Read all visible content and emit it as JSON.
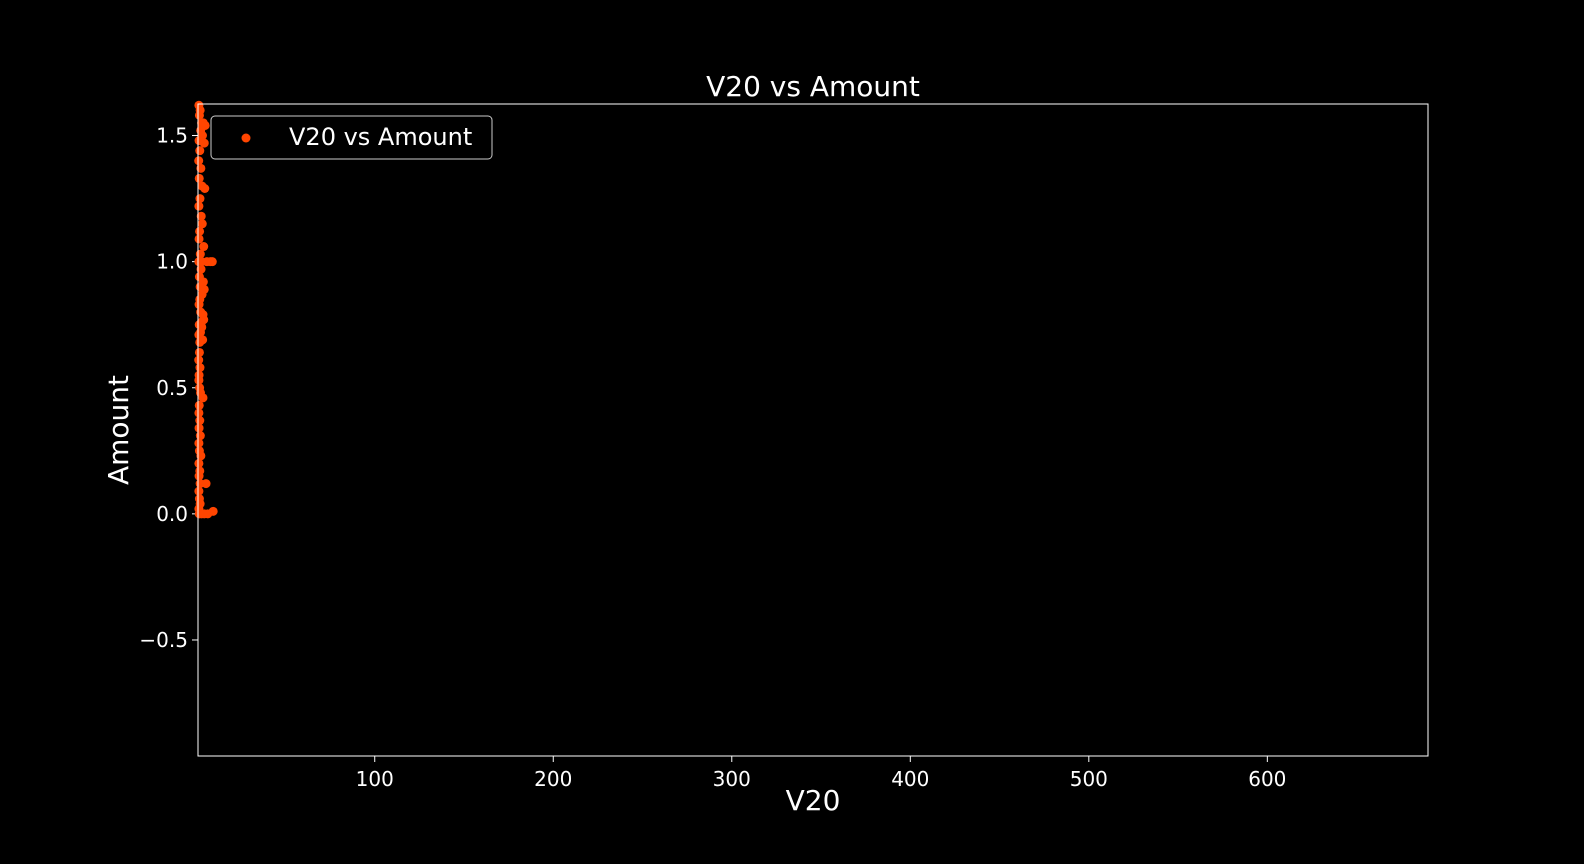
{
  "chart_data": {
    "type": "scatter",
    "title": "V20 vs Amount",
    "xlabel": "V20",
    "ylabel": "Amount",
    "xlim": [
      1,
      690
    ],
    "ylim": [
      -0.96,
      1.625
    ],
    "xticks": [
      100,
      200,
      300,
      400,
      500,
      600
    ],
    "yticks": [
      -0.5,
      0.0,
      0.5,
      1.0,
      1.5
    ],
    "ytick_labels": [
      "−0.5",
      "0.0",
      "0.5",
      "1.0",
      "1.5"
    ],
    "grid": false,
    "legend_position": "upper-left",
    "colors": {
      "background": "#000000",
      "foreground": "#ffffff",
      "marker": "#ff4500"
    },
    "series": [
      {
        "name": "V20 vs Amount",
        "points": [
          [
            1.5,
            1.62
          ],
          [
            2.2,
            1.6
          ],
          [
            1.8,
            1.58
          ],
          [
            3.0,
            1.55
          ],
          [
            4.0,
            1.55
          ],
          [
            5.0,
            1.54
          ],
          [
            2.5,
            1.52
          ],
          [
            3.5,
            1.5
          ],
          [
            1.6,
            1.48
          ],
          [
            4.5,
            1.47
          ],
          [
            2.0,
            1.44
          ],
          [
            1.4,
            1.4
          ],
          [
            2.6,
            1.37
          ],
          [
            1.7,
            1.33
          ],
          [
            3.2,
            1.3
          ],
          [
            4.8,
            1.29
          ],
          [
            2.1,
            1.25
          ],
          [
            1.5,
            1.22
          ],
          [
            2.8,
            1.18
          ],
          [
            3.4,
            1.15
          ],
          [
            1.9,
            1.12
          ],
          [
            1.6,
            1.09
          ],
          [
            4.2,
            1.06
          ],
          [
            2.3,
            1.03
          ],
          [
            6.0,
            1.0
          ],
          [
            8.0,
            1.0
          ],
          [
            9.0,
            1.0
          ],
          [
            1.5,
            1.0
          ],
          [
            3.0,
            1.0
          ],
          [
            2.7,
            0.97
          ],
          [
            1.8,
            0.94
          ],
          [
            4.0,
            0.92
          ],
          [
            2.2,
            0.9
          ],
          [
            4.5,
            0.89
          ],
          [
            3.3,
            0.87
          ],
          [
            2.0,
            0.85
          ],
          [
            1.6,
            0.83
          ],
          [
            2.5,
            0.8
          ],
          [
            3.8,
            0.79
          ],
          [
            4.2,
            0.77
          ],
          [
            2.9,
            0.76
          ],
          [
            1.7,
            0.75
          ],
          [
            3.1,
            0.74
          ],
          [
            2.4,
            0.72
          ],
          [
            1.5,
            0.71
          ],
          [
            3.6,
            0.69
          ],
          [
            2.0,
            0.68
          ],
          [
            1.8,
            0.64
          ],
          [
            1.4,
            0.61
          ],
          [
            2.1,
            0.58
          ],
          [
            1.6,
            0.55
          ],
          [
            1.5,
            0.53
          ],
          [
            1.9,
            0.5
          ],
          [
            2.4,
            0.48
          ],
          [
            3.8,
            0.46
          ],
          [
            1.7,
            0.43
          ],
          [
            1.5,
            0.4
          ],
          [
            2.0,
            0.37
          ],
          [
            1.6,
            0.34
          ],
          [
            2.3,
            0.31
          ],
          [
            1.5,
            0.28
          ],
          [
            1.8,
            0.25
          ],
          [
            2.6,
            0.23
          ],
          [
            1.5,
            0.2
          ],
          [
            2.0,
            0.17
          ],
          [
            1.6,
            0.15
          ],
          [
            2.2,
            0.12
          ],
          [
            5.5,
            0.12
          ],
          [
            1.5,
            0.09
          ],
          [
            1.8,
            0.06
          ],
          [
            2.2,
            0.04
          ],
          [
            1.5,
            0.02
          ],
          [
            1.7,
            0.0
          ],
          [
            3.0,
            0.0
          ],
          [
            4.5,
            0.0
          ],
          [
            6.5,
            0.0
          ],
          [
            9.5,
            0.01
          ]
        ]
      }
    ]
  }
}
